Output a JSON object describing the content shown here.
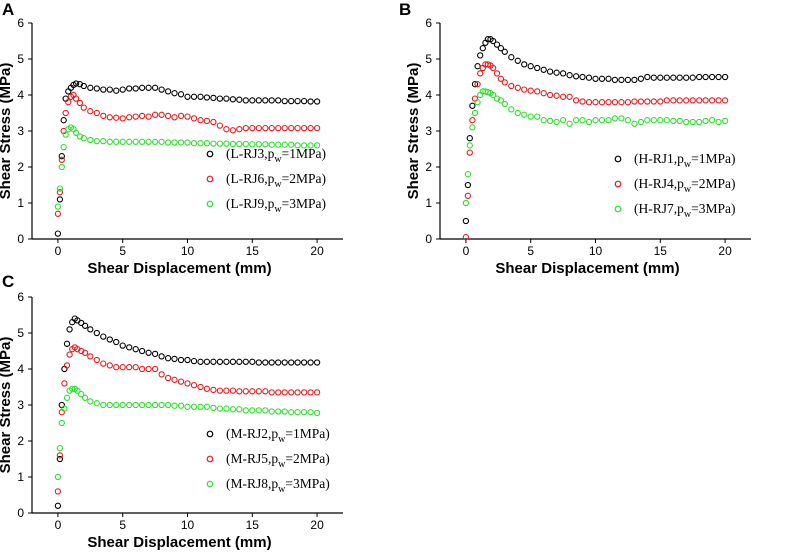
{
  "figure": {
    "colors": {
      "black": "#000000",
      "red": "#e8191b",
      "green": "#2ce02c"
    }
  },
  "chart_data": [
    {
      "panel": "A",
      "type": "scatter",
      "xlabel": "Shear Displacement (mm)",
      "ylabel": "Shear Stress (MPa)",
      "xlim": [
        -2,
        22
      ],
      "ylim": [
        0,
        6
      ],
      "xticks": [
        "0",
        "5",
        "10",
        "15",
        "20"
      ],
      "yticks": [
        "0",
        "1",
        "2",
        "3",
        "4",
        "5",
        "6"
      ],
      "legend_position": "right-middle",
      "series": [
        {
          "name": "L-RJ3",
          "legend": "(L-RJ3,p",
          "legend_sub": "w",
          "legend_end": "=1MPa)",
          "color": "black",
          "x": [
            0,
            0.15,
            0.3,
            0.45,
            0.6,
            0.8,
            1.0,
            1.2,
            1.4,
            1.7,
            2.0,
            2.5,
            3,
            3.5,
            4,
            4.5,
            5,
            5.5,
            6,
            6.5,
            7,
            7.5,
            8,
            8.5,
            9,
            9.5,
            10,
            10.5,
            11,
            11.5,
            12,
            12.5,
            13,
            13.5,
            14,
            14.5,
            15,
            15.5,
            16,
            16.5,
            17,
            17.5,
            18,
            18.5,
            19,
            19.5,
            20
          ],
          "y": [
            0.15,
            1.1,
            2.3,
            3.3,
            3.9,
            4.1,
            4.2,
            4.28,
            4.32,
            4.3,
            4.25,
            4.2,
            4.18,
            4.15,
            4.15,
            4.12,
            4.15,
            4.18,
            4.18,
            4.2,
            4.2,
            4.2,
            4.15,
            4.1,
            4.05,
            4.02,
            3.95,
            3.95,
            3.95,
            3.93,
            3.92,
            3.9,
            3.9,
            3.88,
            3.87,
            3.85,
            3.85,
            3.85,
            3.85,
            3.85,
            3.85,
            3.83,
            3.83,
            3.83,
            3.83,
            3.82,
            3.82
          ]
        },
        {
          "name": "L-RJ6",
          "legend": "(L-RJ6,p",
          "legend_sub": "w",
          "legend_end": "=2MPa)",
          "color": "red",
          "x": [
            0,
            0.15,
            0.3,
            0.45,
            0.6,
            0.8,
            1.0,
            1.2,
            1.4,
            1.7,
            2.0,
            2.5,
            3,
            3.5,
            4,
            4.5,
            5,
            5.5,
            6,
            6.5,
            7,
            7.5,
            8,
            8.5,
            9,
            9.5,
            10,
            10.5,
            11,
            11.5,
            12,
            12.5,
            13,
            13.5,
            14,
            14.5,
            15,
            15.5,
            16,
            16.5,
            17,
            17.5,
            18,
            18.5,
            19,
            19.5,
            20
          ],
          "y": [
            0.7,
            1.3,
            2.2,
            3.0,
            3.5,
            3.8,
            3.95,
            4.0,
            3.9,
            3.78,
            3.65,
            3.55,
            3.5,
            3.42,
            3.38,
            3.37,
            3.35,
            3.38,
            3.4,
            3.42,
            3.4,
            3.45,
            3.45,
            3.42,
            3.38,
            3.42,
            3.4,
            3.35,
            3.3,
            3.28,
            3.25,
            3.15,
            3.05,
            3.02,
            3.05,
            3.08,
            3.08,
            3.08,
            3.08,
            3.08,
            3.08,
            3.08,
            3.08,
            3.08,
            3.08,
            3.08,
            3.08
          ]
        },
        {
          "name": "L-RJ9",
          "legend": "(L-RJ9,p",
          "legend_sub": "w",
          "legend_end": "=3MPa)",
          "color": "green",
          "x": [
            0,
            0.15,
            0.3,
            0.45,
            0.6,
            0.8,
            1.0,
            1.2,
            1.4,
            1.7,
            2.0,
            2.5,
            3,
            3.5,
            4,
            4.5,
            5,
            5.5,
            6,
            6.5,
            7,
            7.5,
            8,
            8.5,
            9,
            9.5,
            10,
            10.5,
            11,
            11.5,
            12,
            12.5,
            13,
            13.5,
            14,
            14.5,
            15,
            15.5,
            16,
            16.5,
            17,
            17.5,
            18,
            18.5,
            19,
            19.5,
            20
          ],
          "y": [
            0.9,
            1.4,
            2.0,
            2.55,
            2.9,
            3.05,
            3.1,
            3.05,
            2.95,
            2.85,
            2.8,
            2.75,
            2.72,
            2.72,
            2.7,
            2.7,
            2.7,
            2.7,
            2.7,
            2.7,
            2.7,
            2.7,
            2.7,
            2.68,
            2.68,
            2.68,
            2.68,
            2.66,
            2.66,
            2.66,
            2.65,
            2.65,
            2.65,
            2.64,
            2.64,
            2.64,
            2.63,
            2.63,
            2.63,
            2.62,
            2.62,
            2.62,
            2.62,
            2.6,
            2.6,
            2.6,
            2.6
          ]
        }
      ]
    },
    {
      "panel": "B",
      "type": "scatter",
      "xlabel": "Shear Displacement (mm)",
      "ylabel": "Shear Stress (MPa)",
      "xlim": [
        -2,
        22
      ],
      "ylim": [
        0,
        6
      ],
      "xticks": [
        "0",
        "5",
        "10",
        "15",
        "20"
      ],
      "yticks": [
        "0",
        "1",
        "2",
        "3",
        "4",
        "5",
        "6"
      ],
      "legend_position": "right-lower",
      "series": [
        {
          "name": "H-RJ1",
          "legend": "(H-RJ1,p",
          "legend_sub": "w",
          "legend_end": "=1MPa)",
          "color": "black",
          "x": [
            0,
            0.15,
            0.3,
            0.5,
            0.7,
            0.9,
            1.1,
            1.3,
            1.5,
            1.7,
            1.9,
            2.1,
            2.4,
            2.7,
            3,
            3.5,
            4,
            4.5,
            5,
            5.5,
            6,
            6.5,
            7,
            7.5,
            8,
            8.5,
            9,
            9.5,
            10,
            10.5,
            11,
            11.5,
            12,
            12.5,
            13,
            13.5,
            14,
            14.5,
            15,
            15.5,
            16,
            16.5,
            17,
            17.5,
            18,
            18.5,
            19,
            19.5,
            20
          ],
          "y": [
            0.5,
            1.5,
            2.8,
            3.7,
            4.3,
            4.8,
            5.1,
            5.3,
            5.45,
            5.55,
            5.55,
            5.5,
            5.4,
            5.3,
            5.2,
            5.05,
            4.95,
            4.85,
            4.8,
            4.75,
            4.7,
            4.65,
            4.62,
            4.6,
            4.55,
            4.52,
            4.5,
            4.48,
            4.45,
            4.45,
            4.45,
            4.42,
            4.42,
            4.42,
            4.42,
            4.45,
            4.5,
            4.48,
            4.48,
            4.48,
            4.48,
            4.48,
            4.48,
            4.48,
            4.5,
            4.5,
            4.5,
            4.5,
            4.5
          ]
        },
        {
          "name": "H-RJ4",
          "legend": "(H-RJ4,p",
          "legend_sub": "w",
          "legend_end": "=2MPa)",
          "color": "red",
          "x": [
            0,
            0.15,
            0.3,
            0.5,
            0.7,
            0.9,
            1.1,
            1.3,
            1.5,
            1.7,
            1.9,
            2.1,
            2.4,
            2.7,
            3,
            3.5,
            4,
            4.5,
            5,
            5.5,
            6,
            6.5,
            7,
            7.5,
            8,
            8.5,
            9,
            9.5,
            10,
            10.5,
            11,
            11.5,
            12,
            12.5,
            13,
            13.5,
            14,
            14.5,
            15,
            15.5,
            16,
            16.5,
            17,
            17.5,
            18,
            18.5,
            19,
            19.5,
            20
          ],
          "y": [
            0.05,
            1.2,
            2.4,
            3.3,
            3.9,
            4.3,
            4.6,
            4.75,
            4.85,
            4.85,
            4.82,
            4.75,
            4.6,
            4.45,
            4.35,
            4.25,
            4.2,
            4.15,
            4.12,
            4.1,
            4.05,
            4.0,
            3.98,
            3.95,
            3.95,
            3.85,
            3.82,
            3.8,
            3.8,
            3.8,
            3.8,
            3.8,
            3.8,
            3.8,
            3.82,
            3.82,
            3.82,
            3.82,
            3.82,
            3.85,
            3.85,
            3.85,
            3.85,
            3.85,
            3.85,
            3.85,
            3.85,
            3.85,
            3.85
          ]
        },
        {
          "name": "H-RJ7",
          "legend": "(H-RJ7,p",
          "legend_sub": "w",
          "legend_end": "=3MPa)",
          "color": "green",
          "x": [
            0,
            0.15,
            0.3,
            0.5,
            0.7,
            0.9,
            1.1,
            1.3,
            1.5,
            1.7,
            1.9,
            2.1,
            2.4,
            2.7,
            3,
            3.5,
            4,
            4.5,
            5,
            5.5,
            6,
            6.5,
            7,
            7.5,
            8,
            8.5,
            9,
            9.5,
            10,
            10.5,
            11,
            11.5,
            12,
            12.5,
            13,
            13.5,
            14,
            14.5,
            15,
            15.5,
            16,
            16.5,
            17,
            17.5,
            18,
            18.5,
            19,
            19.5,
            20
          ],
          "y": [
            1.0,
            1.8,
            2.6,
            3.1,
            3.5,
            3.8,
            4.0,
            4.1,
            4.1,
            4.08,
            4.05,
            4.0,
            3.9,
            3.85,
            3.75,
            3.6,
            3.5,
            3.45,
            3.4,
            3.4,
            3.3,
            3.28,
            3.25,
            3.3,
            3.2,
            3.3,
            3.3,
            3.25,
            3.3,
            3.3,
            3.3,
            3.35,
            3.35,
            3.3,
            3.2,
            3.25,
            3.3,
            3.3,
            3.3,
            3.3,
            3.28,
            3.28,
            3.25,
            3.25,
            3.25,
            3.28,
            3.3,
            3.25,
            3.28
          ]
        }
      ]
    },
    {
      "panel": "C",
      "type": "scatter",
      "xlabel": "Shear Displacement (mm)",
      "ylabel": "Shear Stress (MPa)",
      "xlim": [
        -2,
        22
      ],
      "ylim": [
        0,
        6
      ],
      "xticks": [
        "0",
        "5",
        "10",
        "15",
        "20"
      ],
      "yticks": [
        "0",
        "1",
        "2",
        "3",
        "4",
        "5",
        "6"
      ],
      "legend_position": "right-lower",
      "series": [
        {
          "name": "M-RJ2",
          "legend": "(M-RJ2,p",
          "legend_sub": "w",
          "legend_end": "=1MPa)",
          "color": "black",
          "x": [
            0,
            0.15,
            0.3,
            0.5,
            0.7,
            0.9,
            1.1,
            1.3,
            1.5,
            1.8,
            2.1,
            2.5,
            3,
            3.5,
            4,
            4.5,
            5,
            5.5,
            6,
            6.5,
            7,
            7.5,
            8,
            8.5,
            9,
            9.5,
            10,
            10.5,
            11,
            11.5,
            12,
            12.5,
            13,
            13.5,
            14,
            14.5,
            15,
            15.5,
            16,
            16.5,
            17,
            17.5,
            18,
            18.5,
            19,
            19.5,
            20
          ],
          "y": [
            0.2,
            1.5,
            3.0,
            4.0,
            4.7,
            5.1,
            5.3,
            5.4,
            5.35,
            5.28,
            5.2,
            5.1,
            5.0,
            4.9,
            4.82,
            4.75,
            4.65,
            4.6,
            4.55,
            4.5,
            4.45,
            4.42,
            4.35,
            4.3,
            4.28,
            4.25,
            4.25,
            4.22,
            4.2,
            4.2,
            4.2,
            4.2,
            4.2,
            4.2,
            4.2,
            4.2,
            4.2,
            4.18,
            4.18,
            4.18,
            4.18,
            4.18,
            4.18,
            4.18,
            4.18,
            4.18,
            4.18
          ]
        },
        {
          "name": "M-RJ5",
          "legend": "(M-RJ5,p",
          "legend_sub": "w",
          "legend_end": "=2MPa)",
          "color": "red",
          "x": [
            0,
            0.15,
            0.3,
            0.5,
            0.7,
            0.9,
            1.1,
            1.3,
            1.5,
            1.8,
            2.1,
            2.5,
            3,
            3.5,
            4,
            4.5,
            5,
            5.5,
            6,
            6.5,
            7,
            7.5,
            8,
            8.5,
            9,
            9.5,
            10,
            10.5,
            11,
            11.5,
            12,
            12.5,
            13,
            13.5,
            14,
            14.5,
            15,
            15.5,
            16,
            16.5,
            17,
            17.5,
            18,
            18.5,
            19,
            19.5,
            20
          ],
          "y": [
            0.6,
            1.6,
            2.8,
            3.6,
            4.1,
            4.4,
            4.55,
            4.6,
            4.55,
            4.5,
            4.45,
            4.35,
            4.25,
            4.15,
            4.1,
            4.05,
            4.05,
            4.05,
            4.05,
            4.0,
            4.0,
            4.0,
            3.85,
            3.75,
            3.7,
            3.65,
            3.6,
            3.55,
            3.5,
            3.45,
            3.42,
            3.4,
            3.4,
            3.4,
            3.38,
            3.38,
            3.38,
            3.38,
            3.38,
            3.35,
            3.35,
            3.35,
            3.35,
            3.35,
            3.35,
            3.35,
            3.35
          ]
        },
        {
          "name": "M-RJ8",
          "legend": "(M-RJ8,p",
          "legend_sub": "w",
          "legend_end": "=3MPa)",
          "color": "green",
          "x": [
            0,
            0.15,
            0.3,
            0.5,
            0.7,
            0.9,
            1.1,
            1.3,
            1.5,
            1.8,
            2.1,
            2.5,
            3,
            3.5,
            4,
            4.5,
            5,
            5.5,
            6,
            6.5,
            7,
            7.5,
            8,
            8.5,
            9,
            9.5,
            10,
            10.5,
            11,
            11.5,
            12,
            12.5,
            13,
            13.5,
            14,
            14.5,
            15,
            15.5,
            16,
            16.5,
            17,
            17.5,
            18,
            18.5,
            19,
            19.5,
            20
          ],
          "y": [
            1.0,
            1.8,
            2.5,
            2.9,
            3.2,
            3.4,
            3.45,
            3.45,
            3.4,
            3.3,
            3.2,
            3.1,
            3.05,
            3.0,
            3.0,
            3.0,
            3.0,
            3.0,
            3.0,
            3.0,
            3.0,
            3.0,
            3.0,
            3.0,
            2.98,
            2.98,
            2.95,
            2.95,
            2.95,
            2.95,
            2.92,
            2.9,
            2.9,
            2.88,
            2.88,
            2.85,
            2.85,
            2.85,
            2.85,
            2.82,
            2.82,
            2.82,
            2.8,
            2.8,
            2.8,
            2.8,
            2.78
          ]
        }
      ]
    }
  ]
}
